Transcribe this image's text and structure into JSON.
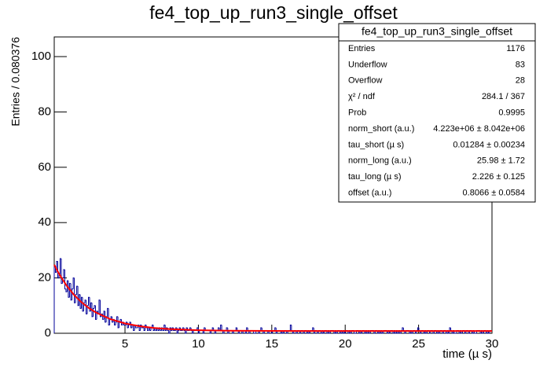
{
  "chart_data": {
    "type": "histogram",
    "title": "fe4_top_up_run3_single_offset",
    "x_label": "time (µ s)",
    "y_label": "Entries / 0.080376",
    "color": "#000099",
    "bins": [
      0.18,
      0.26,
      0.34,
      0.42,
      0.5,
      0.58,
      0.66,
      0.74,
      0.82,
      0.9,
      0.98,
      1.06,
      1.14,
      1.22,
      1.31,
      1.39,
      1.47,
      1.55,
      1.63,
      1.71,
      1.79,
      1.87,
      1.95,
      2.03,
      2.11,
      2.19,
      2.27,
      2.35,
      2.43,
      2.51,
      2.59,
      2.67,
      2.75,
      2.83,
      2.91,
      2.99,
      3.07,
      3.15,
      3.23,
      3.31,
      3.4,
      3.48,
      3.56,
      3.64,
      3.72,
      3.8,
      3.88,
      3.96,
      4.04,
      4.12,
      4.2,
      4.28,
      4.36,
      4.44,
      4.52,
      4.6,
      4.68,
      4.76,
      4.84,
      4.92,
      5.0,
      5.08,
      5.16,
      5.24,
      5.32,
      5.4,
      5.48,
      5.57,
      5.65,
      5.73,
      5.81,
      5.89,
      5.97,
      6.05,
      6.13,
      6.21,
      6.29,
      6.37,
      6.45,
      6.53,
      6.61,
      6.69,
      6.77,
      6.85,
      6.93,
      7.01,
      7.09,
      7.17,
      7.25,
      7.33,
      7.41,
      7.49,
      7.57,
      7.66,
      7.74,
      7.82,
      7.9,
      7.98,
      8.06,
      8.14,
      8.22,
      8.3,
      8.38,
      8.46,
      8.54,
      8.62,
      8.7,
      8.78,
      8.86,
      8.94,
      9.02,
      9.1,
      9.18,
      9.26,
      9.34,
      9.42,
      9.5,
      9.58,
      9.66,
      9.74,
      9.83,
      9.91,
      9.99,
      10.07,
      10.15,
      10.23,
      10.31,
      10.39,
      10.47,
      10.55,
      10.63,
      10.71,
      10.79,
      10.87,
      10.95,
      11.03,
      11.11,
      11.19,
      11.27,
      11.35,
      11.43,
      11.51,
      11.59,
      11.67,
      11.75,
      11.83,
      11.91,
      12.0,
      12.08,
      12.16,
      12.24,
      12.32,
      12.4,
      12.48,
      12.56,
      12.64,
      12.72,
      12.8,
      12.88,
      12.96,
      13.04,
      13.12,
      13.2,
      13.28,
      13.36,
      13.44,
      13.52,
      13.6,
      13.68,
      13.76,
      13.84,
      13.92,
      14.0,
      14.09,
      14.17,
      14.25,
      14.33,
      14.41,
      14.49,
      14.57,
      14.65,
      14.73,
      14.81,
      14.89,
      14.97,
      15.05,
      15.13,
      15.21,
      15.29,
      15.37,
      15.45,
      15.53,
      15.61,
      15.69,
      15.77,
      15.85,
      15.93,
      16.01,
      16.09,
      16.17,
      16.26,
      16.34,
      16.42,
      16.5,
      16.58,
      16.66,
      16.74,
      16.82,
      16.9,
      16.98,
      17.06,
      17.14,
      17.22,
      17.3,
      17.38,
      17.46,
      17.54,
      17.62,
      17.7,
      17.78,
      17.86,
      17.94,
      18.02,
      18.1,
      18.18,
      18.26,
      18.34,
      18.43,
      18.51,
      18.59,
      18.67,
      18.75,
      18.83,
      18.91,
      18.99,
      19.07,
      19.15,
      19.23,
      19.31,
      19.39,
      19.47,
      19.55,
      19.63,
      19.71,
      19.79,
      19.87,
      19.95,
      20.03,
      20.11,
      20.19,
      20.27,
      20.35,
      20.43,
      20.52,
      20.6,
      20.68,
      20.76,
      20.84,
      20.92,
      21.0,
      21.08,
      21.16,
      21.24,
      21.32,
      21.4,
      21.48,
      21.56,
      21.64,
      21.72,
      21.8,
      21.88,
      21.96,
      22.04,
      22.12,
      22.2,
      22.28,
      22.36,
      22.44,
      22.52,
      22.61,
      22.69,
      22.77,
      22.85,
      22.93,
      23.01,
      23.09,
      23.17,
      23.25,
      23.33,
      23.41,
      23.49,
      23.57,
      23.65,
      23.73,
      23.81,
      23.89,
      23.97,
      24.05,
      24.13,
      24.21,
      24.29,
      24.37,
      24.45,
      24.53,
      24.61,
      24.69,
      24.78,
      24.86,
      24.94,
      25.02,
      25.1,
      25.18,
      25.26,
      25.34,
      25.42,
      25.5,
      25.58,
      25.66,
      25.74,
      25.82,
      25.9,
      25.98,
      26.06,
      26.14,
      26.22,
      26.3,
      26.38,
      26.46,
      26.54,
      26.62,
      26.7,
      26.78,
      26.86,
      26.95,
      27.03,
      27.11,
      27.19,
      27.27,
      27.35,
      27.43,
      27.51,
      27.59,
      27.67,
      27.75,
      27.83,
      27.91,
      27.99,
      28.07,
      28.15,
      28.23,
      28.31,
      28.39,
      28.47,
      28.55,
      28.63,
      28.71,
      28.79,
      28.87,
      28.95,
      29.04,
      29.12,
      29.2,
      29.28,
      29.36,
      29.44,
      29.52,
      29.6,
      29.68,
      29.76,
      29.84,
      29.92,
      30.0
    ],
    "values": [
      24,
      22,
      26,
      20,
      21,
      27,
      18,
      20,
      23,
      16,
      15,
      19,
      13,
      18,
      12,
      16,
      20,
      11,
      14,
      17,
      10,
      14,
      9,
      13,
      8,
      11,
      12,
      7,
      10,
      13,
      8,
      11,
      6,
      9,
      10,
      5,
      8,
      7,
      12,
      6,
      7,
      5,
      8,
      4,
      6,
      9,
      3,
      5,
      6,
      4,
      5,
      3,
      4,
      6,
      2,
      4,
      5,
      3,
      4,
      3,
      3,
      4,
      2,
      3,
      4,
      2,
      3,
      1,
      3,
      2,
      2,
      3,
      1,
      3,
      2,
      2,
      1,
      3,
      2,
      1,
      2,
      1,
      2,
      3,
      1,
      2,
      1,
      2,
      1,
      2,
      1,
      2,
      1,
      3,
      1,
      2,
      1,
      0,
      2,
      1,
      2,
      1,
      1,
      2,
      0,
      1,
      2,
      1,
      1,
      2,
      1,
      0,
      2,
      1,
      1,
      2,
      1,
      0,
      1,
      1,
      1,
      2,
      0,
      1,
      1,
      1,
      0,
      2,
      1,
      1,
      1,
      1,
      0,
      1,
      2,
      1,
      0,
      1,
      1,
      2,
      1,
      3,
      1,
      0,
      1,
      1,
      2,
      0,
      1,
      1,
      1,
      0,
      1,
      1,
      2,
      1,
      0,
      1,
      1,
      0,
      1,
      1,
      0,
      2,
      1,
      0,
      1,
      1,
      1,
      0,
      0,
      1,
      1,
      0,
      1,
      2,
      1,
      0,
      1,
      1,
      1,
      0,
      1,
      1,
      0,
      1,
      1,
      2,
      0,
      1,
      1,
      1,
      0,
      1,
      0,
      1,
      1,
      0,
      1,
      1,
      3,
      1,
      0,
      1,
      1,
      0,
      1,
      1,
      0,
      1,
      1,
      0,
      1,
      1,
      0,
      1,
      0,
      1,
      1,
      2,
      0,
      1,
      1,
      0,
      1,
      1,
      0,
      1,
      0,
      1,
      1,
      0,
      1,
      0,
      1,
      1,
      1,
      0,
      1,
      0,
      1,
      1,
      0,
      1,
      0,
      1,
      0,
      1,
      1,
      0,
      1,
      0,
      1,
      1,
      0,
      0,
      1,
      1,
      0,
      1,
      0,
      1,
      1,
      0,
      1,
      0,
      1,
      0,
      1,
      1,
      1,
      0,
      1,
      1,
      0,
      1,
      0,
      1,
      0,
      1,
      1,
      1,
      0,
      1,
      0,
      1,
      1,
      0,
      1,
      0,
      1,
      0,
      1,
      0,
      1,
      2,
      1,
      0,
      1,
      1,
      1,
      0,
      1,
      0,
      1,
      1,
      0,
      1,
      2,
      1,
      0,
      1,
      1,
      0,
      1,
      0,
      1,
      1,
      0,
      1,
      1,
      0,
      1,
      1,
      0,
      1,
      0,
      1,
      1,
      0,
      1,
      1,
      0,
      1,
      0,
      2,
      1,
      0,
      1,
      0,
      0,
      1,
      1,
      0,
      1,
      0,
      1,
      1,
      0,
      1,
      1,
      0,
      1,
      1,
      0,
      1,
      0,
      0,
      1,
      1,
      1,
      0,
      1,
      0,
      1,
      1,
      0,
      1,
      0,
      1,
      1
    ],
    "fit": {
      "color": "#ff0000",
      "x": [
        0.18,
        0.5,
        1,
        1.5,
        2,
        2.5,
        3,
        4,
        5,
        6,
        7,
        8,
        10,
        12,
        15,
        20,
        25,
        30
      ],
      "values": [
        24.77,
        21.56,
        17.39,
        14.05,
        11.39,
        9.26,
        7.56,
        5.12,
        3.56,
        2.56,
        1.93,
        1.52,
        1.1,
        0.93,
        0.84,
        0.81,
        0.81,
        0.81
      ]
    },
    "xlim": [
      0.18,
      30
    ],
    "ylim": [
      0,
      107.1
    ],
    "xticks": [
      5,
      10,
      15,
      20,
      25,
      30
    ],
    "yticks": [
      0,
      20,
      40,
      60,
      80,
      100
    ],
    "stats": {
      "title": "fe4_top_up_run3_single_offset",
      "rows": [
        [
          "Entries",
          1176
        ],
        [
          "Underflow",
          83
        ],
        [
          "Overflow",
          28
        ],
        [
          "χ² / ndf",
          "284.1 / 367"
        ],
        [
          "Prob",
          0.9995
        ],
        [
          "norm_short (a.u.)",
          "4.223e+06 ± 8.042e+06"
        ],
        [
          "tau_short (µ s)",
          "0.01284 ± 0.00234"
        ],
        [
          "norm_long (a.u.)",
          "25.98 ± 1.72"
        ],
        [
          "tau_long (µ s)",
          "2.226 ± 0.125"
        ],
        [
          "offset (a.u.)",
          "0.8066 ± 0.0584"
        ]
      ]
    }
  }
}
